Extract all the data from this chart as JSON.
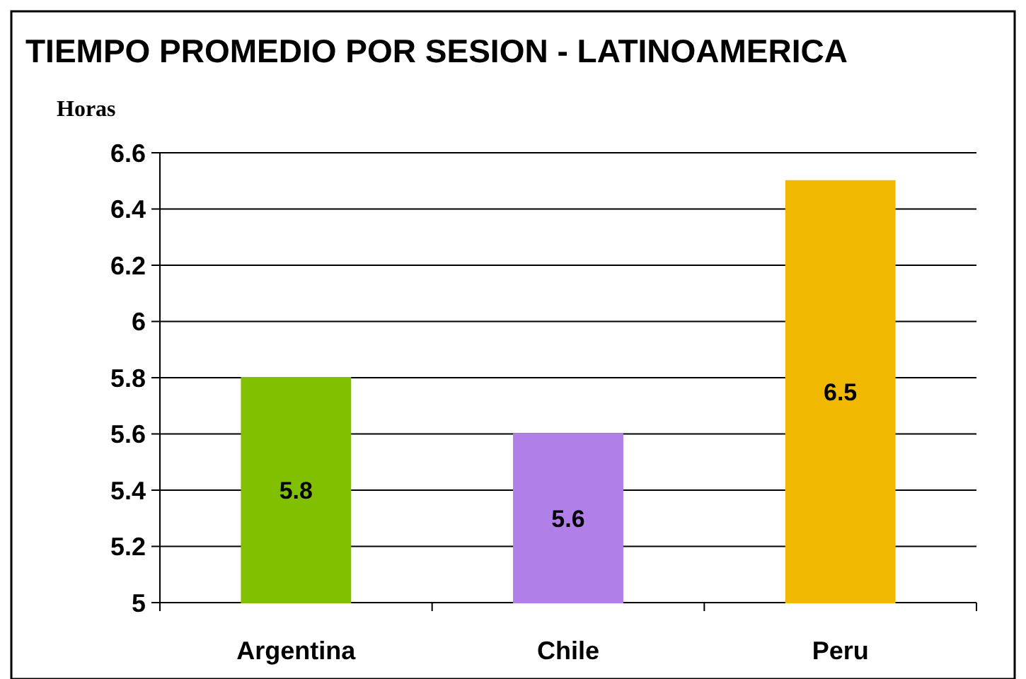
{
  "chart_data": {
    "type": "bar",
    "title": "TIEMPO PROMEDIO POR SESION - LATINOAMERICA",
    "ylabel": "Horas",
    "categories": [
      "Argentina",
      "Chile",
      "Peru"
    ],
    "values": [
      5.8,
      5.6,
      6.5
    ],
    "colors": [
      "#80c000",
      "#b080e8",
      "#f0b800"
    ],
    "ylim": [
      5,
      6.6
    ],
    "yticks": [
      5,
      5.2,
      5.4,
      5.6,
      5.8,
      6,
      6.2,
      6.4,
      6.6
    ],
    "grid": "y",
    "data_labels": true
  }
}
